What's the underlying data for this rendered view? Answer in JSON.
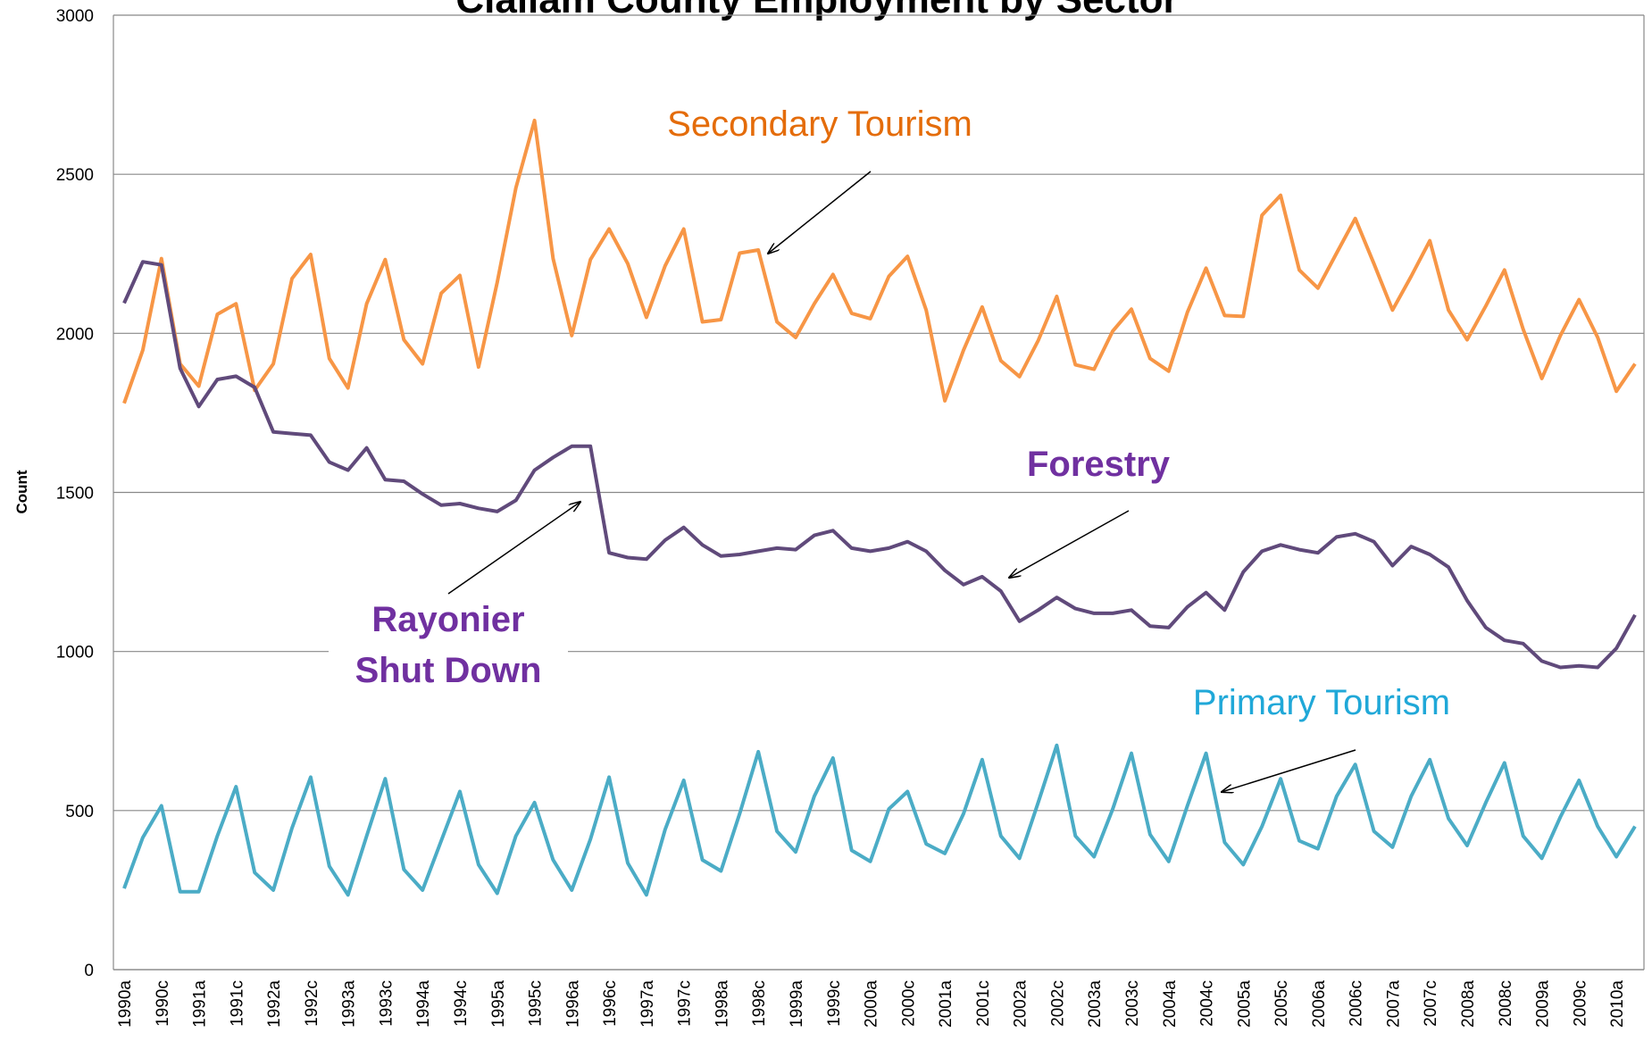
{
  "chart_data": {
    "type": "line",
    "title": "Clallam County Employment by Sector",
    "y_label": "Count",
    "ylim": [
      0,
      3000
    ],
    "yticks": [
      0,
      500,
      1000,
      1500,
      2000,
      2500,
      3000
    ],
    "grid": true,
    "categories": [
      "1990a",
      null,
      "1990c",
      null,
      "1991a",
      null,
      "1991c",
      null,
      "1992a",
      null,
      "1992c",
      null,
      "1993a",
      null,
      "1993c",
      null,
      "1994a",
      null,
      "1994c",
      null,
      "1995a",
      null,
      "1995c",
      null,
      "1996a",
      null,
      "1996c",
      null,
      "1997a",
      null,
      "1997c",
      null,
      "1998a",
      null,
      "1998c",
      null,
      "1999a",
      null,
      "1999c",
      null,
      "2000a",
      null,
      "2000c",
      null,
      "2001a",
      null,
      "2001c",
      null,
      "2002a",
      null,
      "2002c",
      null,
      "2003a",
      null,
      "2003c",
      null,
      "2004a",
      null,
      "2004c",
      null,
      "2005a",
      null,
      "2005c",
      null,
      "2006a",
      null,
      "2006c",
      null,
      "2007a",
      null,
      "2007c",
      null,
      "2008a",
      null,
      "2008c",
      null,
      "2009a",
      null,
      "2009c",
      null,
      "2010a",
      null
    ],
    "series": [
      {
        "name": "Secondary Tourism",
        "color": "#f79646",
        "label_color": "#e46c0a",
        "values": [
          1780,
          1947,
          2235,
          1904,
          1834,
          2060,
          2093,
          1821,
          1904,
          2172,
          2248,
          1921,
          1828,
          2093,
          2232,
          1980,
          1904,
          2126,
          2182,
          1894,
          2160,
          2457,
          2669,
          2235,
          1993,
          2232,
          2328,
          2219,
          2050,
          2212,
          2328,
          2036,
          2043,
          2252,
          2262,
          2036,
          1987,
          2093,
          2185,
          2063,
          2046,
          2179,
          2242,
          2073,
          1788,
          1947,
          2083,
          1914,
          1864,
          1977,
          2116,
          1901,
          1887,
          2007,
          2076,
          1921,
          1881,
          2066,
          2205,
          2056,
          2053,
          2371,
          2434,
          2199,
          2142,
          2252,
          2361,
          2219,
          2073,
          2179,
          2291,
          2073,
          1980,
          2086,
          2199,
          2013,
          1858,
          1993,
          2106,
          1987,
          1818,
          1904
        ]
      },
      {
        "name": "Forestry",
        "color": "#604a7b",
        "label_color": "#7030a0",
        "values": [
          2095,
          2225,
          2215,
          1890,
          1770,
          1855,
          1865,
          1830,
          1690,
          1685,
          1680,
          1595,
          1570,
          1640,
          1540,
          1535,
          1495,
          1460,
          1465,
          1450,
          1440,
          1475,
          1570,
          1610,
          1645,
          1645,
          1310,
          1295,
          1290,
          1350,
          1390,
          1335,
          1300,
          1305,
          1315,
          1325,
          1320,
          1365,
          1380,
          1325,
          1315,
          1325,
          1345,
          1315,
          1255,
          1210,
          1235,
          1190,
          1095,
          1130,
          1170,
          1135,
          1120,
          1120,
          1130,
          1080,
          1075,
          1140,
          1185,
          1130,
          1250,
          1315,
          1335,
          1320,
          1310,
          1360,
          1370,
          1345,
          1270,
          1330,
          1305,
          1265,
          1160,
          1075,
          1035,
          1025,
          970,
          950,
          955,
          950,
          1010,
          1115
        ]
      },
      {
        "name": "Primary Tourism",
        "color": "#4bacc6",
        "label_color": "#20a8d8",
        "values": [
          255,
          415,
          515,
          245,
          245,
          420,
          575,
          305,
          250,
          445,
          605,
          325,
          235,
          420,
          600,
          315,
          250,
          405,
          560,
          330,
          240,
          420,
          525,
          345,
          250,
          410,
          605,
          335,
          235,
          440,
          595,
          345,
          310,
          490,
          685,
          435,
          370,
          545,
          665,
          375,
          340,
          505,
          560,
          395,
          365,
          490,
          660,
          420,
          350,
          525,
          705,
          420,
          355,
          505,
          680,
          425,
          340,
          515,
          680,
          400,
          330,
          450,
          600,
          405,
          380,
          545,
          645,
          435,
          385,
          545,
          660,
          475,
          390,
          525,
          650,
          420,
          350,
          480,
          595,
          450,
          355,
          450
        ]
      }
    ],
    "annotation": [
      "Rayonier",
      "Shut Down"
    ]
  }
}
